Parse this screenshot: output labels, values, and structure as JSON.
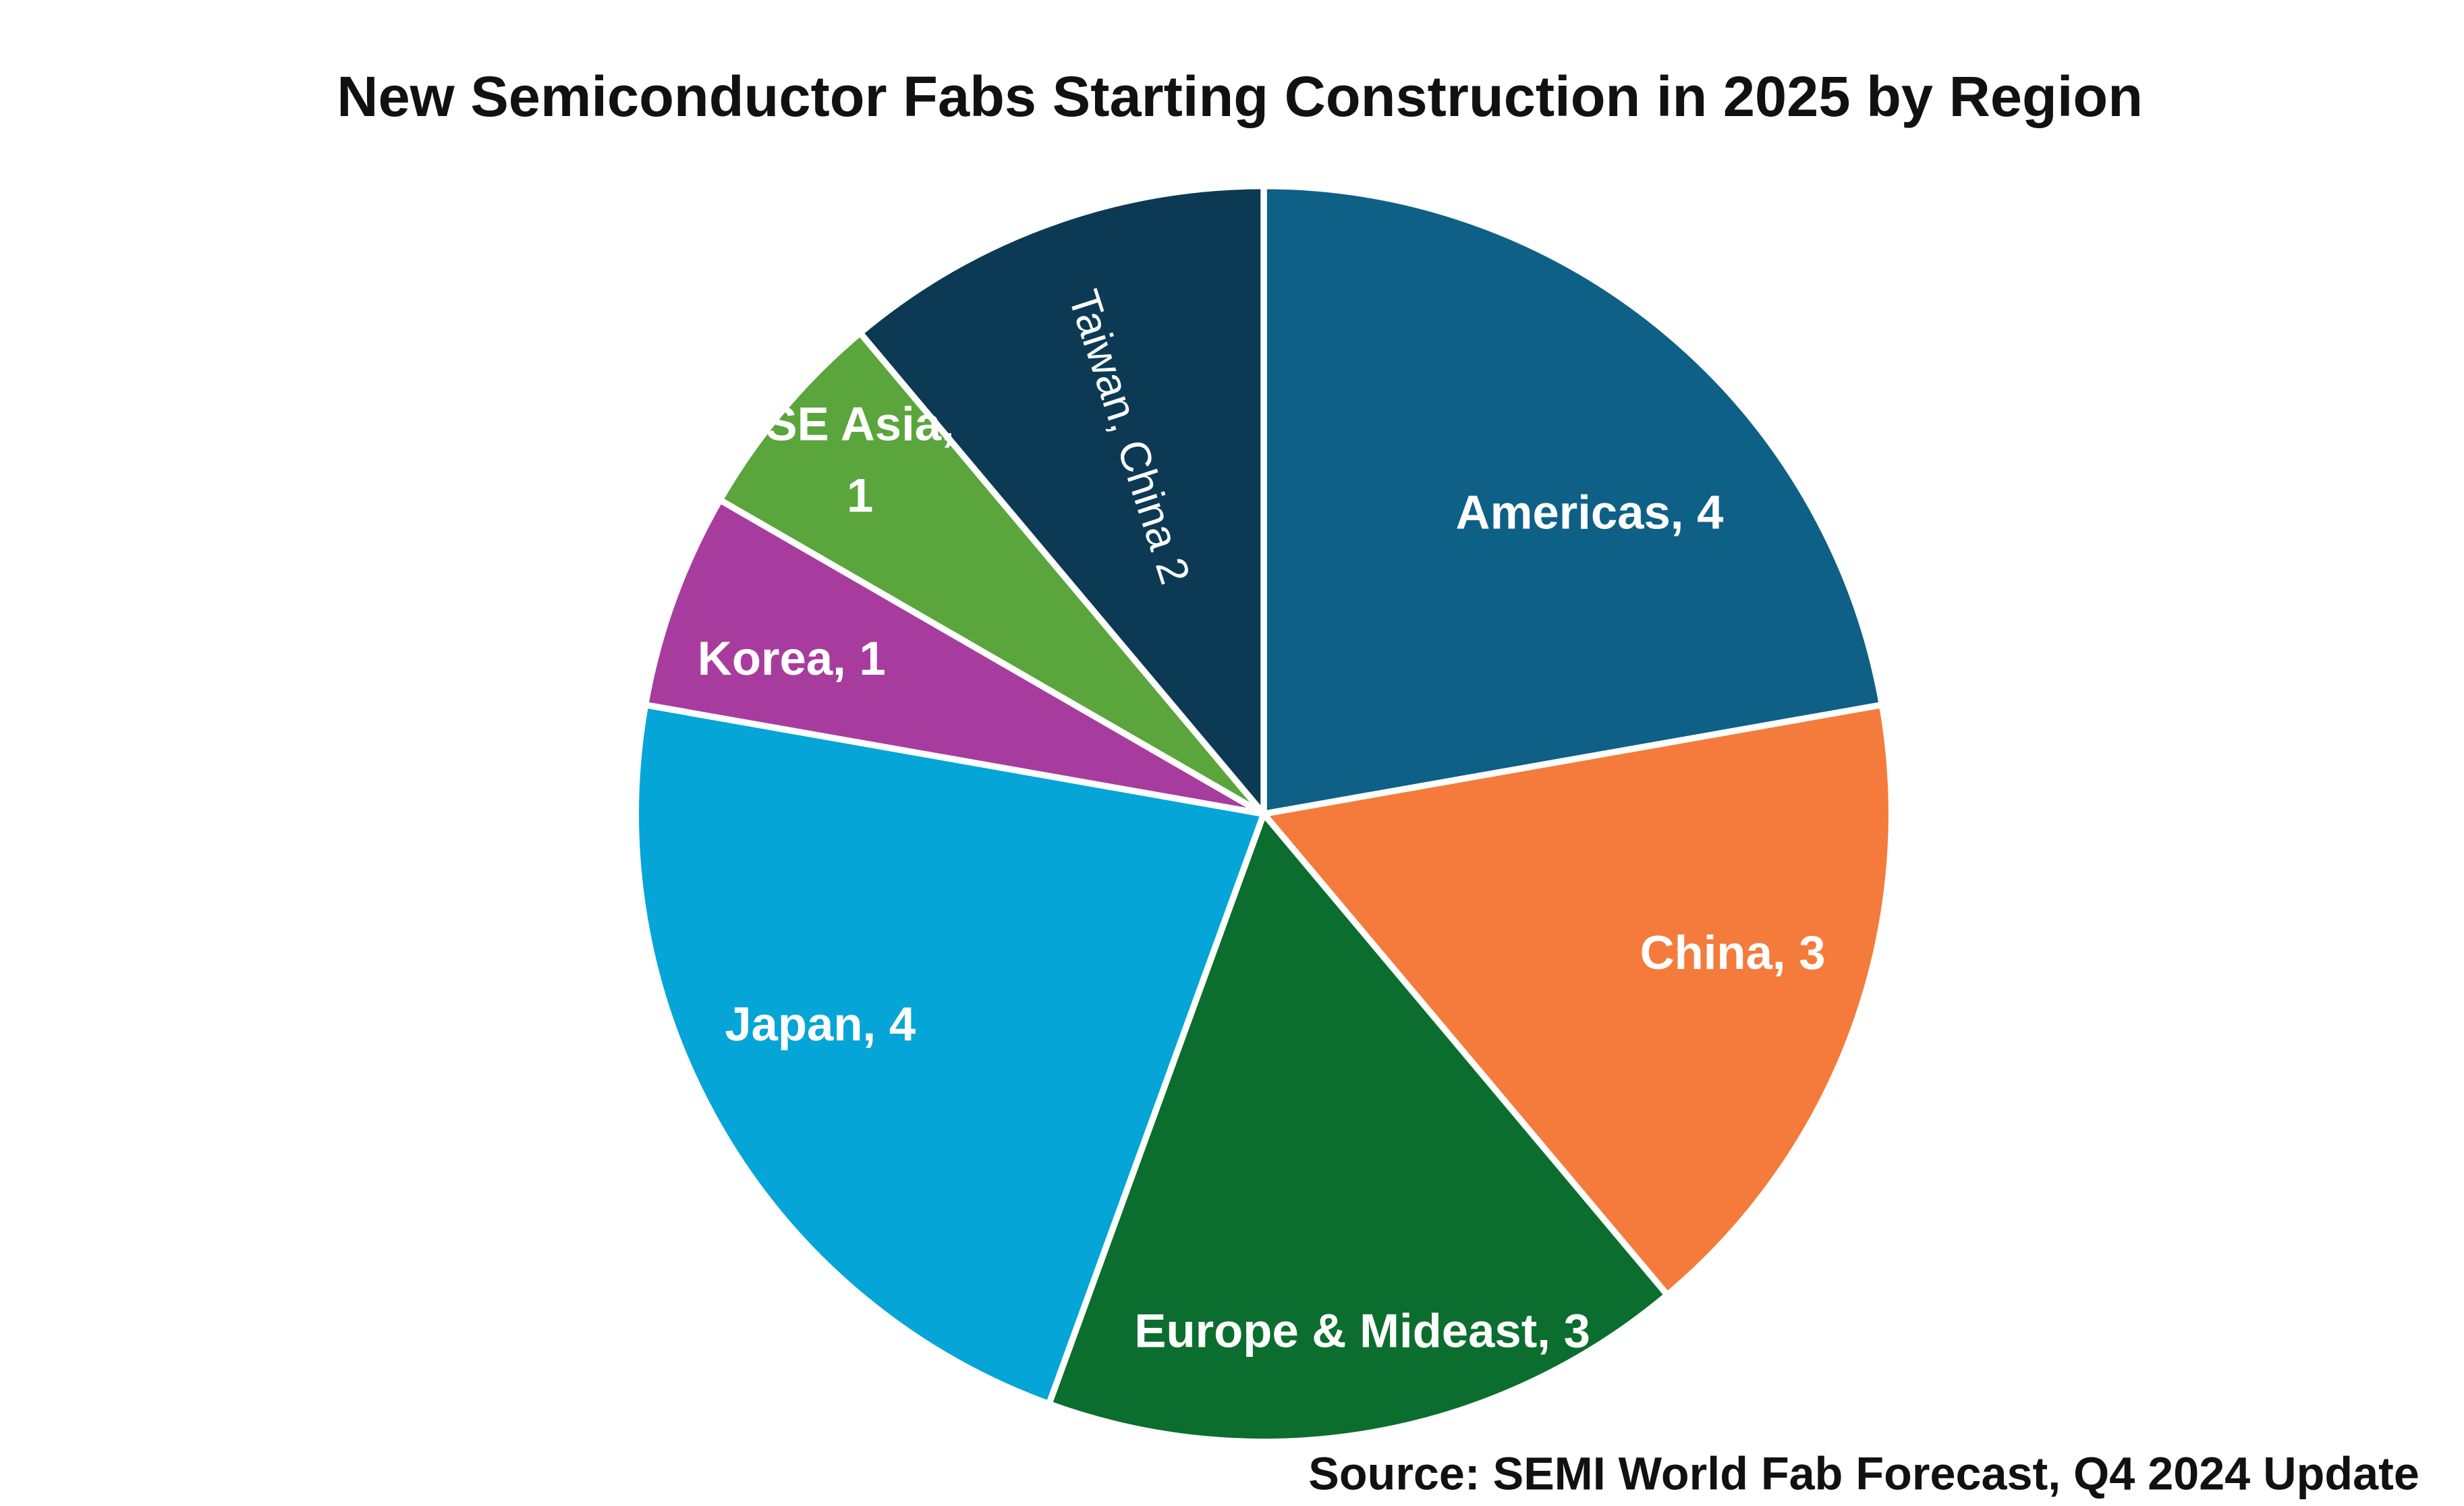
{
  "chart_data": {
    "type": "pie",
    "title": "New Semiconductor Fabs Starting Construction in 2025 by Region",
    "categories": [
      "Americas,",
      "China,",
      "Europe & Mideast,",
      "Japan,",
      "Korea,",
      "SE Asia,",
      "Taiwan, China"
    ],
    "values": [
      4,
      3,
      3,
      4,
      1,
      1,
      2
    ],
    "colors": [
      "#0f6087",
      "#f47b3b",
      "#0b6e2e",
      "#06a5d8",
      "#a83c9e",
      "#5aa53c",
      "#0c3a55"
    ],
    "source": "Source: SEMI World Fab Forecast, Q4 2024 Update"
  }
}
